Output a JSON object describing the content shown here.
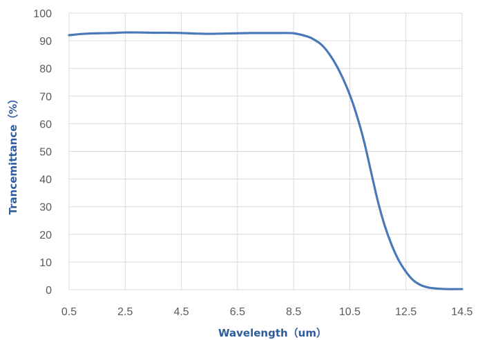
{
  "chart_data": {
    "type": "line",
    "xlabel": "Wavelength（um）",
    "ylabel": "Trancemittance（%）",
    "xlim": [
      0.5,
      14.5
    ],
    "ylim": [
      0,
      100
    ],
    "x_ticks": [
      "0.5",
      "2.5",
      "4.5",
      "6.5",
      "8.5",
      "10.5",
      "12.5",
      "14.5"
    ],
    "y_ticks": [
      "0",
      "10",
      "20",
      "30",
      "40",
      "50",
      "60",
      "70",
      "80",
      "90",
      "100"
    ],
    "grid": true,
    "series": [
      {
        "color": "#4a78b8",
        "x": [
          0.5,
          1.0,
          1.5,
          2.0,
          2.5,
          3.0,
          3.5,
          4.0,
          4.5,
          5.0,
          5.5,
          6.0,
          6.5,
          7.0,
          7.5,
          8.0,
          8.5,
          9.0,
          9.25,
          9.5,
          9.75,
          10.0,
          10.25,
          10.5,
          10.75,
          11.0,
          11.25,
          11.5,
          11.75,
          12.0,
          12.25,
          12.5,
          12.75,
          13.0,
          13.25,
          13.5,
          13.75,
          14.0,
          14.25,
          14.5
        ],
        "y": [
          92.0,
          92.5,
          92.7,
          92.8,
          93.0,
          93.0,
          92.9,
          92.9,
          92.8,
          92.6,
          92.5,
          92.6,
          92.7,
          92.8,
          92.8,
          92.8,
          92.7,
          91.5,
          90.3,
          88.5,
          85.5,
          81.5,
          76.5,
          70.5,
          63.0,
          54.0,
          43.0,
          32.0,
          23.0,
          16.0,
          10.5,
          6.5,
          3.5,
          1.8,
          0.9,
          0.5,
          0.3,
          0.2,
          0.2,
          0.2
        ]
      }
    ]
  }
}
